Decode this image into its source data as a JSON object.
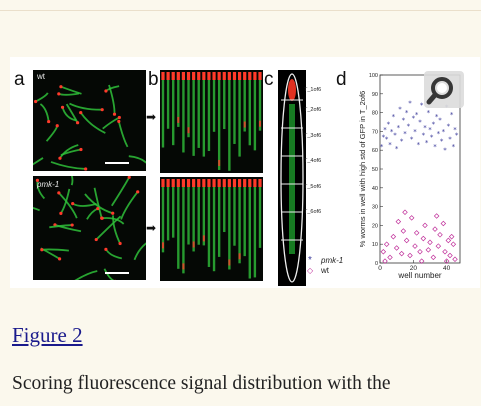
{
  "figure": {
    "panel_labels": [
      "a",
      "b",
      "c",
      "d"
    ],
    "strain_wt": "wt",
    "strain_pmk": "pmk-1",
    "t_labels": [
      "T_1of6",
      "T_2of6",
      "T_3of6",
      "T_4of6",
      "T_5of6",
      "T_6of6"
    ],
    "legend": [
      {
        "symbol": "*",
        "label": "pmk-1",
        "color": "#3a3a9a"
      },
      {
        "symbol": "◇",
        "label": "wt",
        "color": "#c0309a"
      }
    ],
    "zoom_icon": "magnifier-icon"
  },
  "chart_data": {
    "type": "scatter",
    "title": "",
    "xlabel": "well number",
    "ylabel": "% worms in well with high std of GFP in T_2of6",
    "xlim": [
      0,
      48
    ],
    "ylim": [
      0,
      100
    ],
    "xticks": [
      0,
      20,
      40
    ],
    "yticks": [
      0,
      10,
      20,
      30,
      40,
      50,
      60,
      70,
      80,
      90,
      100
    ],
    "grid": false,
    "series": [
      {
        "name": "pmk-1",
        "marker": "*",
        "color": "#3a3a9a",
        "x": [
          1,
          2,
          3,
          4,
          5,
          6,
          7,
          8,
          9,
          10,
          11,
          12,
          13,
          14,
          15,
          16,
          17,
          18,
          19,
          20,
          21,
          22,
          23,
          24,
          25,
          26,
          27,
          28,
          29,
          30,
          31,
          32,
          33,
          34,
          35,
          36,
          37,
          38,
          39,
          40,
          41,
          42,
          43,
          44,
          45,
          46
        ],
        "y": [
          62,
          67,
          71,
          66,
          74,
          63,
          70,
          78,
          68,
          61,
          72,
          82,
          65,
          76,
          69,
          80,
          73,
          85,
          66,
          77,
          70,
          79,
          63,
          75,
          84,
          68,
          72,
          64,
          80,
          71,
          67,
          74,
          62,
          78,
          69,
          76,
          65,
          70,
          60,
          83,
          73,
          66,
          79,
          62,
          71,
          68
        ]
      },
      {
        "name": "wt",
        "marker": "◇",
        "color": "#c0309a",
        "x": [
          2,
          4,
          6,
          8,
          10,
          11,
          13,
          14,
          16,
          18,
          19,
          21,
          22,
          24,
          26,
          27,
          29,
          30,
          32,
          33,
          35,
          36,
          38,
          39,
          41,
          42,
          44,
          45,
          15,
          25,
          34,
          40,
          43,
          3
        ],
        "y": [
          6,
          10,
          3,
          14,
          8,
          22,
          5,
          17,
          12,
          4,
          24,
          9,
          16,
          6,
          13,
          20,
          7,
          11,
          3,
          18,
          9,
          15,
          21,
          6,
          12,
          4,
          10,
          2,
          27,
          1,
          25,
          1,
          14,
          1
        ]
      }
    ]
  },
  "figure_link": "Figure 2",
  "caption": "Scoring fluorescence signal distribution with the"
}
